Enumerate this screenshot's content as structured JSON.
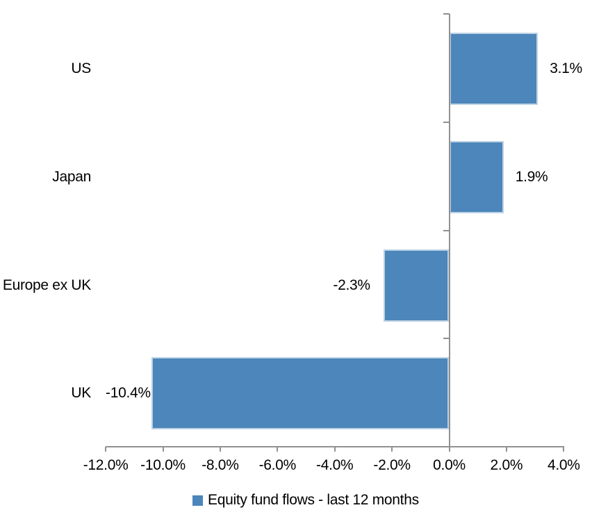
{
  "chart_data": {
    "type": "bar",
    "orientation": "horizontal",
    "categories": [
      "US",
      "Japan",
      "Europe ex UK",
      "UK"
    ],
    "series": [
      {
        "name": "Equity fund flows - last 12 months",
        "values": [
          3.1,
          1.9,
          -2.3,
          -10.4
        ],
        "data_labels": [
          "3.1%",
          "1.9%",
          "-2.3%",
          "-10.4%"
        ],
        "color": "#4C86BA",
        "border_color": "#BCD1E4"
      }
    ],
    "xlim": [
      -12,
      4
    ],
    "x_tick_values": [
      -12,
      -10,
      -8,
      -6,
      -4,
      -2,
      0,
      2,
      4
    ],
    "x_tick_labels": [
      "-12.0%",
      "-10.0%",
      "-8.0%",
      "-6.0%",
      "-4.0%",
      "-2.0%",
      "0.0%",
      "2.0%",
      "4.0%"
    ],
    "grid": false,
    "legend_position": "bottom",
    "axis_color": "#909090",
    "text_color": "#000000",
    "background": "#FFFFFF"
  }
}
